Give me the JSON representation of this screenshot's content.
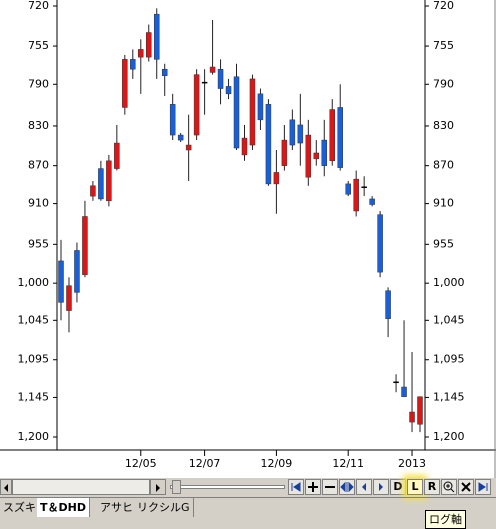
{
  "chart_data": {
    "type": "candlestick",
    "log_scale": true,
    "y_reversed": true,
    "ylim": [
      720,
      1200
    ],
    "yticks": [
      720,
      755,
      790,
      830,
      870,
      910,
      955,
      {
        "value": 1000,
        "label": "1,000"
      },
      {
        "value": 1045,
        "label": "1,045"
      },
      {
        "value": 1095,
        "label": "1,095"
      },
      {
        "value": 1145,
        "label": "1,145"
      },
      {
        "value": 1200,
        "label": "1,200"
      }
    ],
    "categories": [
      null,
      null,
      null,
      null,
      null,
      null,
      null,
      null,
      null,
      null,
      "12/05",
      null,
      null,
      null,
      null,
      null,
      null,
      null,
      "12/07",
      null,
      null,
      null,
      null,
      null,
      null,
      null,
      null,
      "12/09",
      null,
      null,
      null,
      null,
      null,
      null,
      null,
      null,
      "12/11",
      null,
      null,
      null,
      null,
      null,
      null,
      null,
      "2013",
      null
    ],
    "open": [
      974,
      1033,
      962,
      990,
      902,
      873,
      907,
      873,
      812,
      767,
      765,
      765,
      727,
      776,
      809,
      839,
      854,
      839,
      788,
      779,
      776,
      792,
      783,
      859,
      849,
      799,
      809,
      889,
      870,
      824,
      829,
      882,
      863,
      844,
      865,
      812,
      889,
      918,
      892,
      905,
      922,
      1009,
      1124,
      1131,
      1179,
      1182
    ],
    "high": [
      1045,
      1060,
      1023,
      993,
      907,
      907,
      913,
      875,
      819,
      785,
      799,
      769,
      785,
      801,
      844,
      846,
      886,
      844,
      819,
      781,
      809,
      804,
      854,
      865,
      854,
      834,
      891,
      921,
      875,
      854,
      870,
      891,
      870,
      881,
      870,
      875,
      902,
      924,
      902,
      913,
      993,
      1066,
      1138,
      1144,
      1193,
      1193
    ],
    "low": [
      950,
      993,
      953,
      907,
      886,
      865,
      859,
      829,
      763,
      758,
      749,
      736,
      722,
      771,
      799,
      837,
      819,
      776,
      776,
      732,
      767,
      785,
      771,
      829,
      781,
      794,
      804,
      854,
      829,
      814,
      799,
      824,
      844,
      824,
      804,
      790,
      886,
      875,
      881,
      902,
      918,
      1005,
      1114,
      1045,
      1085,
      1144
    ],
    "close": [
      1023,
      1003,
      1011,
      924,
      891,
      905,
      865,
      847,
      767,
      776,
      758,
      743,
      767,
      782,
      839,
      844,
      849,
      781,
      788,
      774,
      794,
      799,
      852,
      842,
      785,
      824,
      889,
      877,
      844,
      849,
      847,
      839,
      857,
      870,
      814,
      872,
      900,
      884,
      892,
      911,
      987,
      1043,
      1124,
      1144,
      1165,
      1144
    ],
    "color_close_above_open": "#1a5fd6",
    "color_close_below_open": "#d81818",
    "color_unchanged": "#000000"
  },
  "ui": {
    "buttons": [
      "D",
      "L",
      "R"
    ],
    "tabs": [
      "スズキ",
      "T＆DHD",
      "アサヒ",
      "リクシルG"
    ],
    "tooltip": "ログ軸"
  }
}
